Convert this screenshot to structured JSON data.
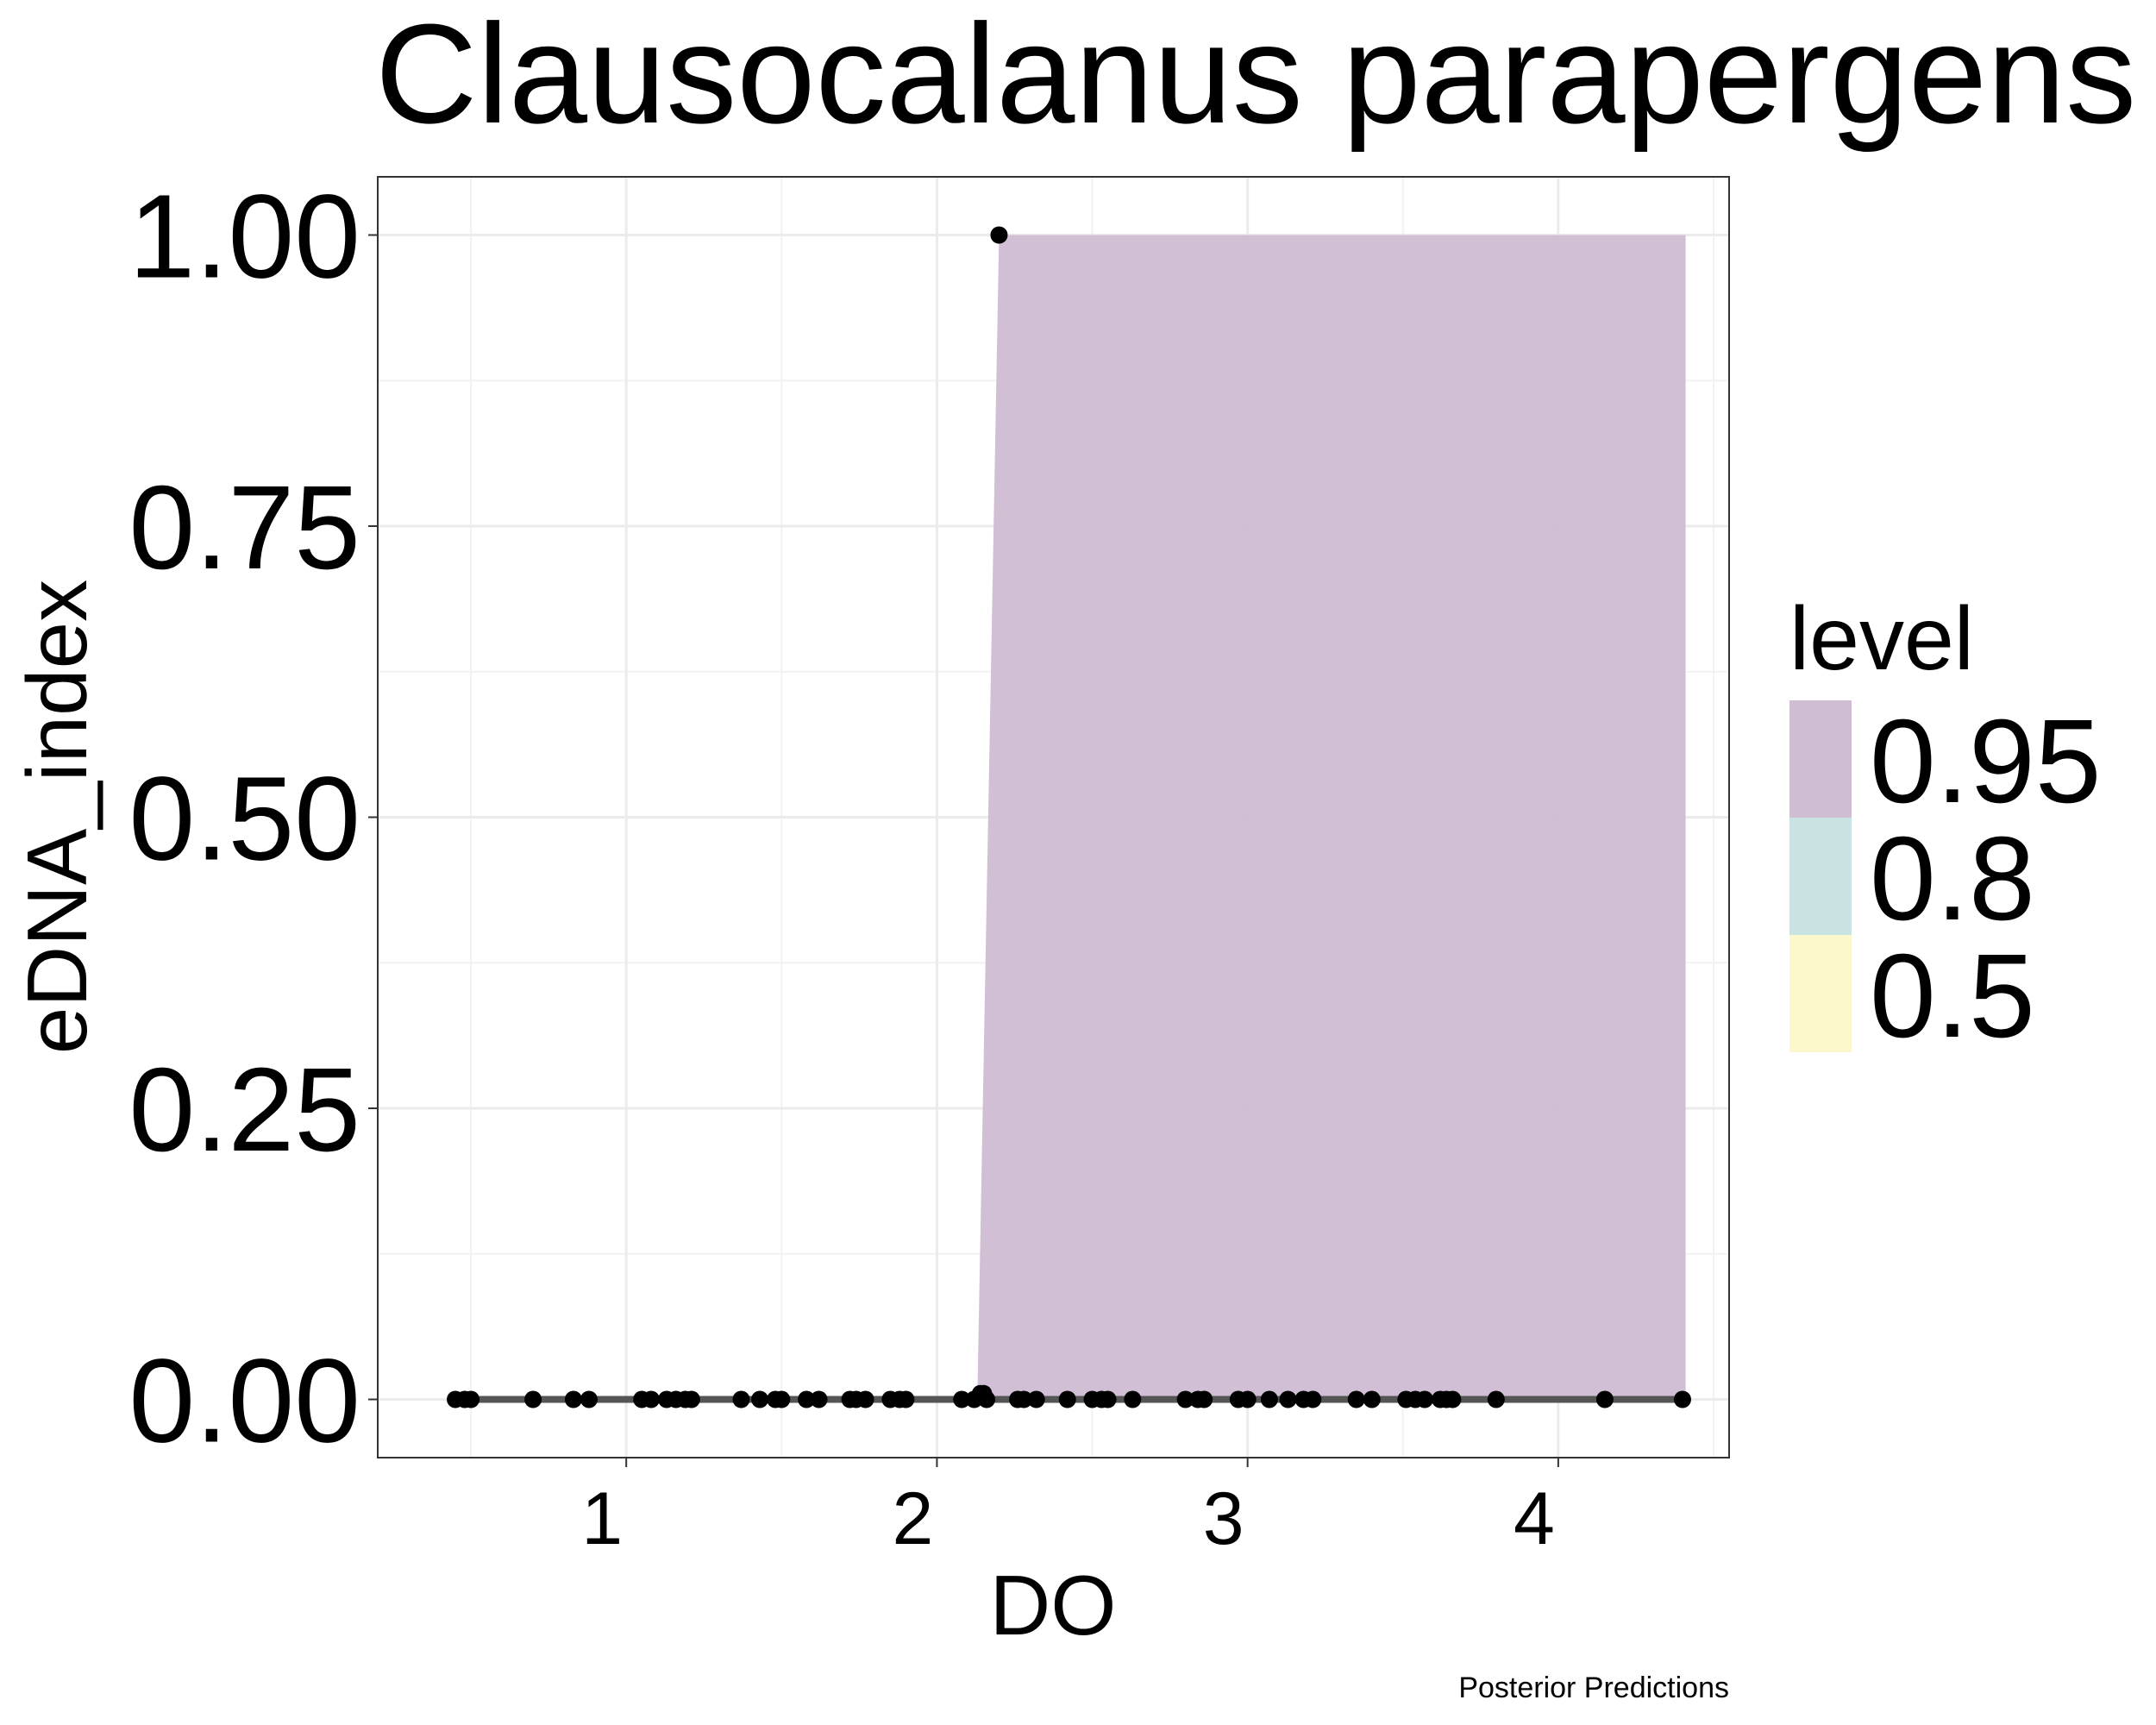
{
  "chart_data": {
    "type": "scatter",
    "title": "Clausocalanus parapergens",
    "xlabel": "DO",
    "ylabel": "eDNA_index",
    "caption": "Posterior Predictions",
    "xlim": [
      0.2,
      4.55
    ],
    "ylim": [
      -0.05,
      1.05
    ],
    "x_ticks": [
      1,
      2,
      3,
      4
    ],
    "x_tick_labels": [
      "1",
      "2",
      "3",
      "4"
    ],
    "y_ticks": [
      0,
      0.25,
      0.5,
      0.75,
      1
    ],
    "y_tick_labels": [
      "0.00",
      "0.25",
      "0.50",
      "0.75",
      "1.00"
    ],
    "grid": true,
    "legend": {
      "title": "level",
      "position": "right",
      "items": [
        {
          "label": "0.95",
          "color": "#cfbdd3"
        },
        {
          "label": "0.8",
          "color": "#c8e3e2"
        },
        {
          "label": "0.5",
          "color": "#fcf8cb"
        }
      ]
    },
    "ribbon_095": {
      "x": [
        2.13,
        2.2,
        4.41
      ],
      "ymin": [
        0,
        0,
        0
      ],
      "ymax": [
        0,
        1,
        1
      ],
      "color": "#cfbdd3"
    },
    "median_line": {
      "x": [
        0.5,
        4.41
      ],
      "y": [
        0,
        0
      ],
      "color": "#555555"
    },
    "points": {
      "color": "#000000",
      "x": [
        0.45,
        0.48,
        0.5,
        0.7,
        0.83,
        0.88,
        1.05,
        1.08,
        1.13,
        1.16,
        1.19,
        1.21,
        1.37,
        1.43,
        1.48,
        1.5,
        1.58,
        1.62,
        1.72,
        1.74,
        1.77,
        1.85,
        1.88,
        1.9,
        2.08,
        2.12,
        2.14,
        2.15,
        2.16,
        2.2,
        2.26,
        2.28,
        2.32,
        2.42,
        2.5,
        2.53,
        2.55,
        2.63,
        2.8,
        2.84,
        2.86,
        2.97,
        3.0,
        3.07,
        3.13,
        3.18,
        3.21,
        3.35,
        3.4,
        3.51,
        3.54,
        3.57,
        3.62,
        3.64,
        3.66,
        3.8,
        4.15,
        4.4
      ],
      "y": [
        0,
        0,
        0,
        0,
        0,
        0,
        0,
        0,
        0,
        0,
        0,
        0,
        0,
        0,
        0,
        0,
        0,
        0,
        0,
        0,
        0,
        0,
        0,
        0,
        0,
        0,
        0.005,
        0.005,
        0,
        1,
        0,
        0,
        0,
        0,
        0,
        0,
        0,
        0,
        0,
        0,
        0,
        0,
        0,
        0,
        0,
        0,
        0,
        0,
        0,
        0,
        0,
        0,
        0,
        0,
        0,
        0,
        0,
        0
      ]
    }
  }
}
